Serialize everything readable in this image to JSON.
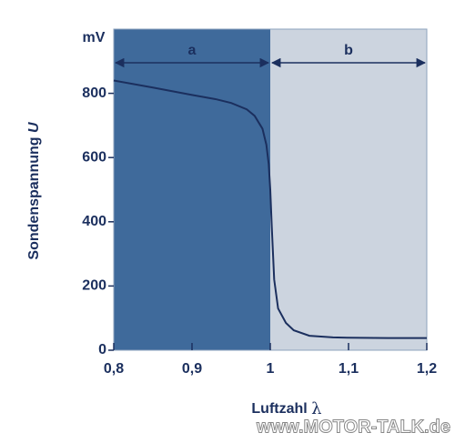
{
  "chart_data": {
    "type": "line",
    "y_label": {
      "text": "Sondenspannung",
      "symbol": "U"
    },
    "x_label": {
      "text": "Luftzahl",
      "symbol": "λ"
    },
    "y_unit": "mV",
    "regions": [
      {
        "label": "a",
        "from": 0.8,
        "to": 1.0,
        "color": "#3f6a9b"
      },
      {
        "label": "b",
        "from": 1.0,
        "to": 1.2,
        "color": "#ccd4df"
      }
    ],
    "x": [
      0.8,
      0.85,
      0.9,
      0.93,
      0.95,
      0.97,
      0.98,
      0.99,
      0.995,
      0.998,
      1.0,
      1.002,
      1.005,
      1.01,
      1.02,
      1.03,
      1.05,
      1.08,
      1.1,
      1.15,
      1.2
    ],
    "series": [
      {
        "name": "U",
        "color": "#1b2f5e",
        "values": [
          840,
          818,
          795,
          782,
          770,
          750,
          730,
          690,
          640,
          580,
          500,
          380,
          220,
          130,
          85,
          62,
          45,
          40,
          39,
          38,
          38
        ]
      }
    ],
    "xlim": [
      0.8,
      1.2
    ],
    "xticks": [
      {
        "value": 0.8,
        "label": "0,8"
      },
      {
        "value": 0.9,
        "label": "0,9"
      },
      1,
      {
        "value": 1.1,
        "label": "1,1"
      },
      {
        "value": 1.2,
        "label": "1,2"
      }
    ],
    "ylim": [
      0,
      1000
    ],
    "yticks": [
      0,
      200,
      400,
      600,
      800
    ],
    "watermark": "www.MOTOR-TALK.de"
  }
}
